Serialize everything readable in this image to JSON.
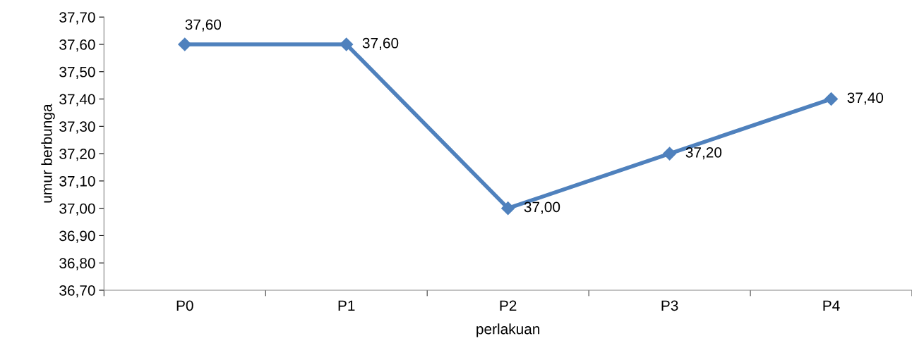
{
  "chart_data": {
    "type": "line",
    "xlabel": "perlakuan",
    "ylabel": "umur berbunga",
    "categories": [
      "P0",
      "P1",
      "P2",
      "P3",
      "P4"
    ],
    "series": [
      {
        "color": "#4f81bd",
        "values": [
          37.6,
          37.6,
          37.0,
          37.2,
          37.4
        ],
        "value_labels": [
          "37,60",
          "37,60",
          "37,00",
          "37,20",
          "37,40"
        ]
      }
    ],
    "ylim": [
      36.7,
      37.7
    ],
    "yticks": [
      {
        "value": 36.7,
        "label": "36,70"
      },
      {
        "value": 36.8,
        "label": "36,80"
      },
      {
        "value": 36.9,
        "label": "36,90"
      },
      {
        "value": 37.0,
        "label": "37,00"
      },
      {
        "value": 37.1,
        "label": "37,10"
      },
      {
        "value": 37.2,
        "label": "37,20"
      },
      {
        "value": 37.3,
        "label": "37,30"
      },
      {
        "value": 37.4,
        "label": "37,40"
      },
      {
        "value": 37.5,
        "label": "37,50"
      },
      {
        "value": 37.6,
        "label": "37,60"
      },
      {
        "value": 37.7,
        "label": "37,70"
      }
    ],
    "grid": false,
    "legend": false,
    "marker": "diamond",
    "line_style": "solid"
  }
}
